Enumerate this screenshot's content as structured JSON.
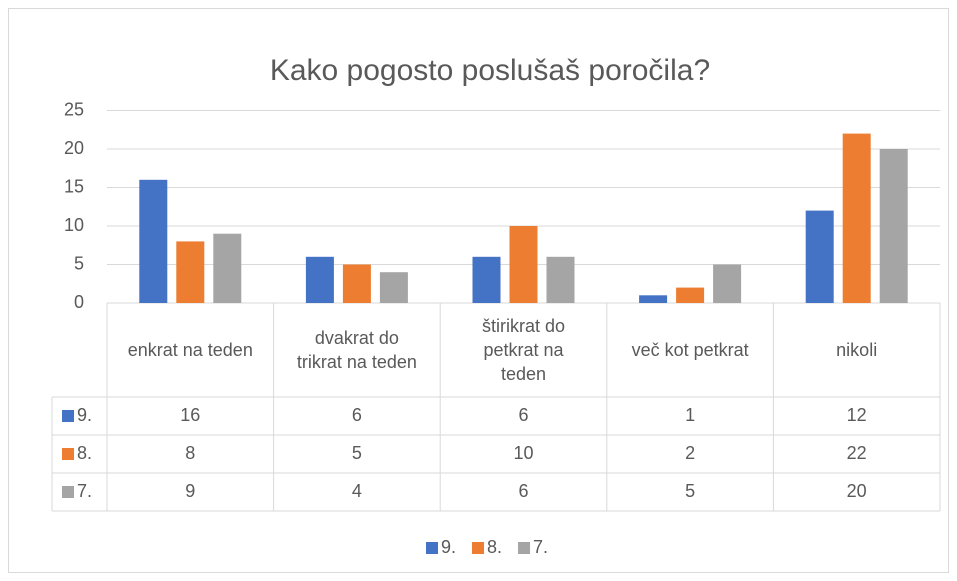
{
  "chart_data": {
    "type": "bar",
    "title": "Kako pogosto poslušaš poročila?",
    "categories": [
      "enkrat na teden",
      "dvakrat do trikrat na teden",
      "štirikrat do petkrat na teden",
      "več kot petkrat",
      "nikoli"
    ],
    "series": [
      {
        "name": "9.",
        "color": "#4472c4",
        "values": [
          16,
          6,
          6,
          1,
          12
        ]
      },
      {
        "name": "8.",
        "color": "#ed7d31",
        "values": [
          8,
          5,
          10,
          2,
          22
        ]
      },
      {
        "name": "7.",
        "color": "#a5a5a5",
        "values": [
          9,
          4,
          6,
          5,
          20
        ]
      }
    ],
    "ylim": [
      0,
      25
    ],
    "yticks": [
      0,
      5,
      10,
      15,
      20,
      25
    ],
    "grid": true,
    "data_table": true,
    "legend": "bottom"
  }
}
